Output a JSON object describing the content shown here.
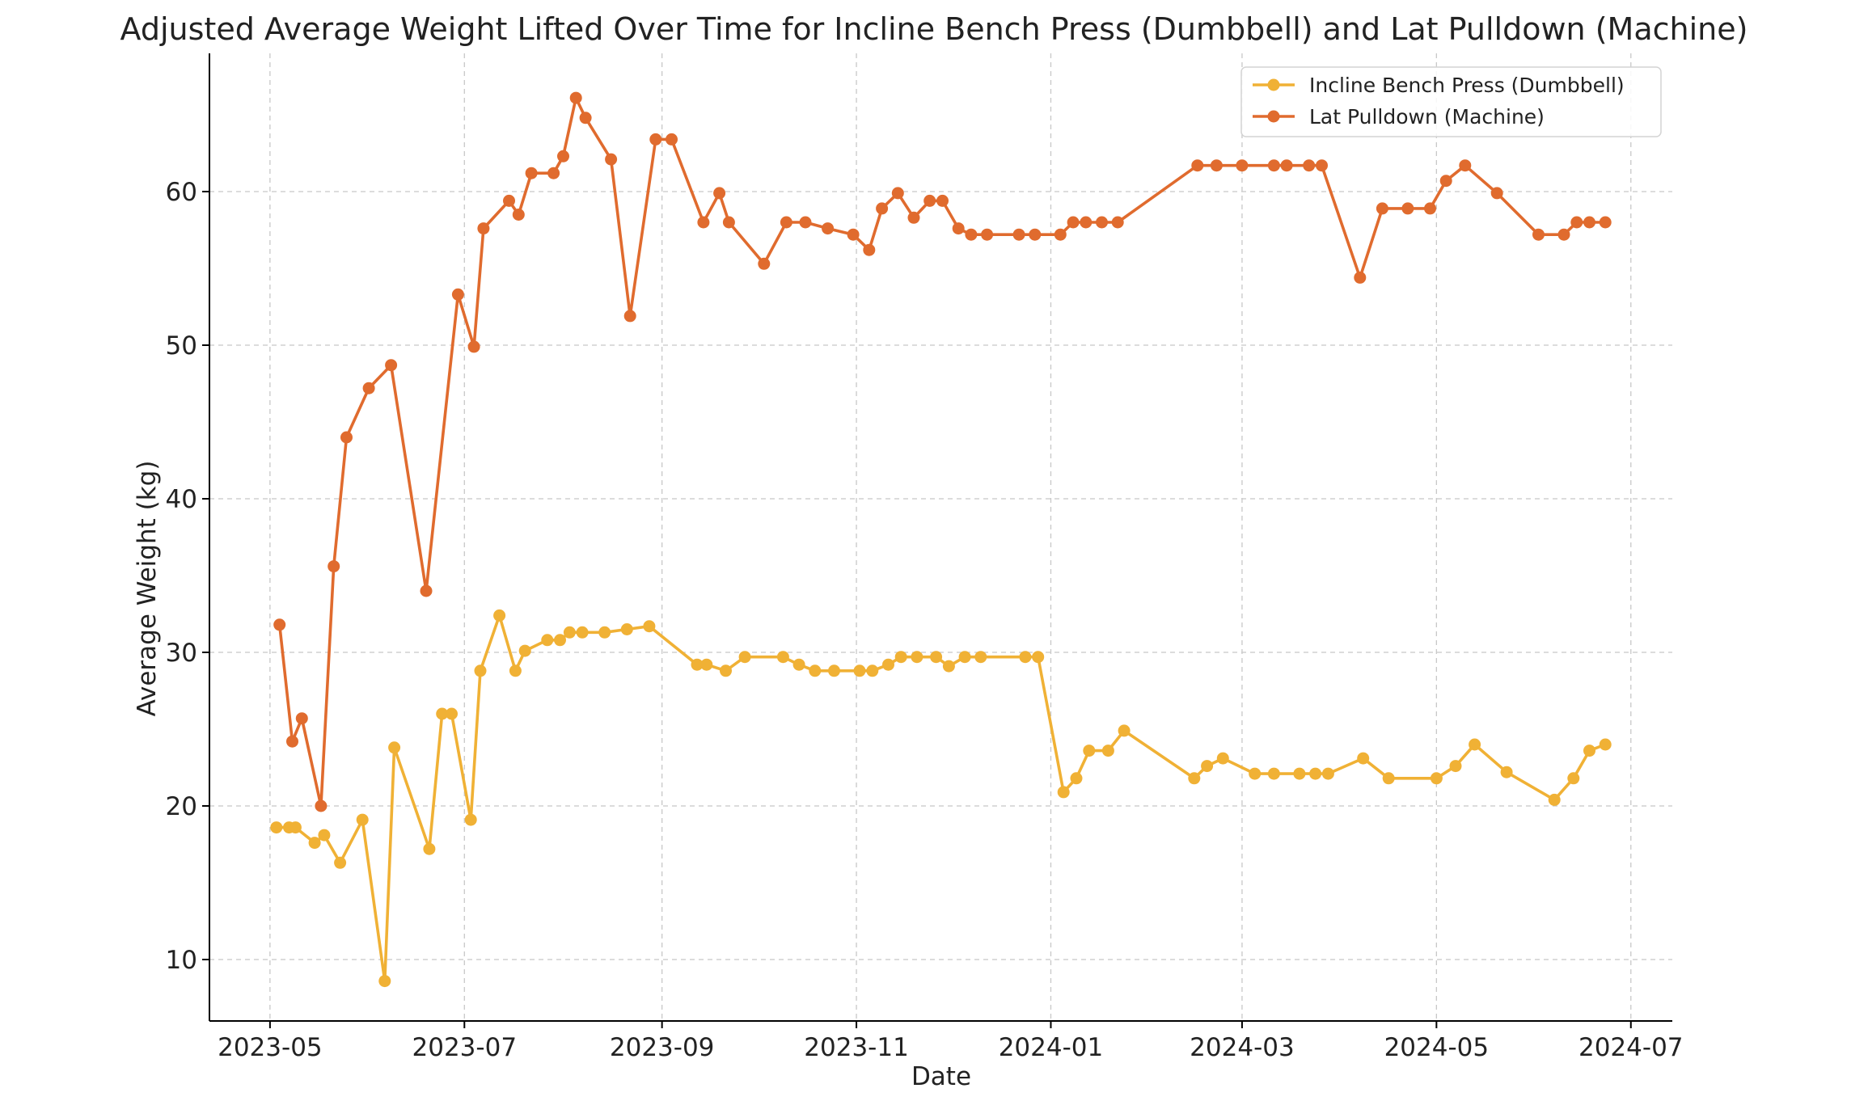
{
  "chart_data": {
    "type": "line",
    "title": "Adjusted Average Weight Lifted Over Time for Incline Bench Press (Dumbbell) and Lat Pulldown (Machine)",
    "xlabel": "Date",
    "ylabel": "Average Weight (kg)",
    "xlim": [
      "2023-04-12",
      "2024-07-14"
    ],
    "ylim": [
      6,
      69
    ],
    "xticks": [
      "2023-05",
      "2023-07",
      "2023-09",
      "2023-11",
      "2024-01",
      "2024-03",
      "2024-05",
      "2024-07"
    ],
    "yticks": [
      10,
      20,
      30,
      40,
      50,
      60
    ],
    "grid": true,
    "legend_position": "top-right",
    "series": [
      {
        "name": "Incline Bench Press (Dumbbell)",
        "color": "#F0B135",
        "points": [
          [
            "2023-05-03",
            18.6
          ],
          [
            "2023-05-07",
            18.6
          ],
          [
            "2023-05-09",
            18.6
          ],
          [
            "2023-05-15",
            17.6
          ],
          [
            "2023-05-18",
            18.1
          ],
          [
            "2023-05-23",
            16.3
          ],
          [
            "2023-05-30",
            19.1
          ],
          [
            "2023-06-06",
            8.6
          ],
          [
            "2023-06-09",
            23.8
          ],
          [
            "2023-06-20",
            17.2
          ],
          [
            "2023-06-24",
            26.0
          ],
          [
            "2023-06-27",
            26.0
          ],
          [
            "2023-07-03",
            19.1
          ],
          [
            "2023-07-06",
            28.8
          ],
          [
            "2023-07-12",
            32.4
          ],
          [
            "2023-07-17",
            28.8
          ],
          [
            "2023-07-20",
            30.1
          ],
          [
            "2023-07-27",
            30.8
          ],
          [
            "2023-07-31",
            30.8
          ],
          [
            "2023-08-03",
            31.3
          ],
          [
            "2023-08-07",
            31.3
          ],
          [
            "2023-08-14",
            31.3
          ],
          [
            "2023-08-21",
            31.5
          ],
          [
            "2023-08-28",
            31.7
          ],
          [
            "2023-09-12",
            29.2
          ],
          [
            "2023-09-15",
            29.2
          ],
          [
            "2023-09-21",
            28.8
          ],
          [
            "2023-09-27",
            29.7
          ],
          [
            "2023-10-09",
            29.7
          ],
          [
            "2023-10-14",
            29.2
          ],
          [
            "2023-10-19",
            28.8
          ],
          [
            "2023-10-25",
            28.8
          ],
          [
            "2023-11-02",
            28.8
          ],
          [
            "2023-11-06",
            28.8
          ],
          [
            "2023-11-11",
            29.2
          ],
          [
            "2023-11-15",
            29.7
          ],
          [
            "2023-11-20",
            29.7
          ],
          [
            "2023-11-26",
            29.7
          ],
          [
            "2023-11-30",
            29.1
          ],
          [
            "2023-12-05",
            29.7
          ],
          [
            "2023-12-10",
            29.7
          ],
          [
            "2023-12-24",
            29.7
          ],
          [
            "2023-12-28",
            29.7
          ],
          [
            "2024-01-05",
            20.9
          ],
          [
            "2024-01-09",
            21.8
          ],
          [
            "2024-01-13",
            23.6
          ],
          [
            "2024-01-19",
            23.6
          ],
          [
            "2024-01-24",
            24.9
          ],
          [
            "2024-02-15",
            21.8
          ],
          [
            "2024-02-19",
            22.6
          ],
          [
            "2024-02-24",
            23.1
          ],
          [
            "2024-03-05",
            22.1
          ],
          [
            "2024-03-11",
            22.1
          ],
          [
            "2024-03-19",
            22.1
          ],
          [
            "2024-03-24",
            22.1
          ],
          [
            "2024-03-28",
            22.1
          ],
          [
            "2024-04-08",
            23.1
          ],
          [
            "2024-04-16",
            21.8
          ],
          [
            "2024-05-01",
            21.8
          ],
          [
            "2024-05-07",
            22.6
          ],
          [
            "2024-05-13",
            24.0
          ],
          [
            "2024-05-23",
            22.2
          ],
          [
            "2024-06-07",
            20.4
          ],
          [
            "2024-06-13",
            21.8
          ],
          [
            "2024-06-18",
            23.6
          ],
          [
            "2024-06-23",
            24.0
          ]
        ]
      },
      {
        "name": "Lat Pulldown (Machine)",
        "color": "#E06B2E",
        "points": [
          [
            "2023-05-04",
            31.8
          ],
          [
            "2023-05-08",
            24.2
          ],
          [
            "2023-05-11",
            25.7
          ],
          [
            "2023-05-17",
            20.0
          ],
          [
            "2023-05-21",
            35.6
          ],
          [
            "2023-05-25",
            44.0
          ],
          [
            "2023-06-01",
            47.2
          ],
          [
            "2023-06-08",
            48.7
          ],
          [
            "2023-06-19",
            34.0
          ],
          [
            "2023-06-29",
            53.3
          ],
          [
            "2023-07-04",
            49.9
          ],
          [
            "2023-07-07",
            57.6
          ],
          [
            "2023-07-15",
            59.4
          ],
          [
            "2023-07-18",
            58.5
          ],
          [
            "2023-07-22",
            61.2
          ],
          [
            "2023-07-29",
            61.2
          ],
          [
            "2023-08-01",
            62.3
          ],
          [
            "2023-08-05",
            66.1
          ],
          [
            "2023-08-08",
            64.8
          ],
          [
            "2023-08-16",
            62.1
          ],
          [
            "2023-08-22",
            51.9
          ],
          [
            "2023-08-30",
            63.4
          ],
          [
            "2023-09-04",
            63.4
          ],
          [
            "2023-09-14",
            58.0
          ],
          [
            "2023-09-19",
            59.9
          ],
          [
            "2023-09-22",
            58.0
          ],
          [
            "2023-10-03",
            55.3
          ],
          [
            "2023-10-10",
            58.0
          ],
          [
            "2023-10-16",
            58.0
          ],
          [
            "2023-10-23",
            57.6
          ],
          [
            "2023-10-31",
            57.2
          ],
          [
            "2023-11-05",
            56.2
          ],
          [
            "2023-11-09",
            58.9
          ],
          [
            "2023-11-14",
            59.9
          ],
          [
            "2023-11-19",
            58.3
          ],
          [
            "2023-11-24",
            59.4
          ],
          [
            "2023-11-28",
            59.4
          ],
          [
            "2023-12-03",
            57.6
          ],
          [
            "2023-12-07",
            57.2
          ],
          [
            "2023-12-12",
            57.2
          ],
          [
            "2023-12-22",
            57.2
          ],
          [
            "2023-12-27",
            57.2
          ],
          [
            "2024-01-04",
            57.2
          ],
          [
            "2024-01-08",
            58.0
          ],
          [
            "2024-01-12",
            58.0
          ],
          [
            "2024-01-17",
            58.0
          ],
          [
            "2024-01-22",
            58.0
          ],
          [
            "2024-02-16",
            61.7
          ],
          [
            "2024-02-22",
            61.7
          ],
          [
            "2024-03-01",
            61.7
          ],
          [
            "2024-03-11",
            61.7
          ],
          [
            "2024-03-15",
            61.7
          ],
          [
            "2024-03-22",
            61.7
          ],
          [
            "2024-03-26",
            61.7
          ],
          [
            "2024-04-07",
            54.4
          ],
          [
            "2024-04-14",
            58.9
          ],
          [
            "2024-04-22",
            58.9
          ],
          [
            "2024-04-29",
            58.9
          ],
          [
            "2024-05-04",
            60.7
          ],
          [
            "2024-05-10",
            61.7
          ],
          [
            "2024-05-20",
            59.9
          ],
          [
            "2024-06-02",
            57.2
          ],
          [
            "2024-06-10",
            57.2
          ],
          [
            "2024-06-14",
            58.0
          ],
          [
            "2024-06-18",
            58.0
          ],
          [
            "2024-06-23",
            58.0
          ]
        ]
      }
    ]
  }
}
